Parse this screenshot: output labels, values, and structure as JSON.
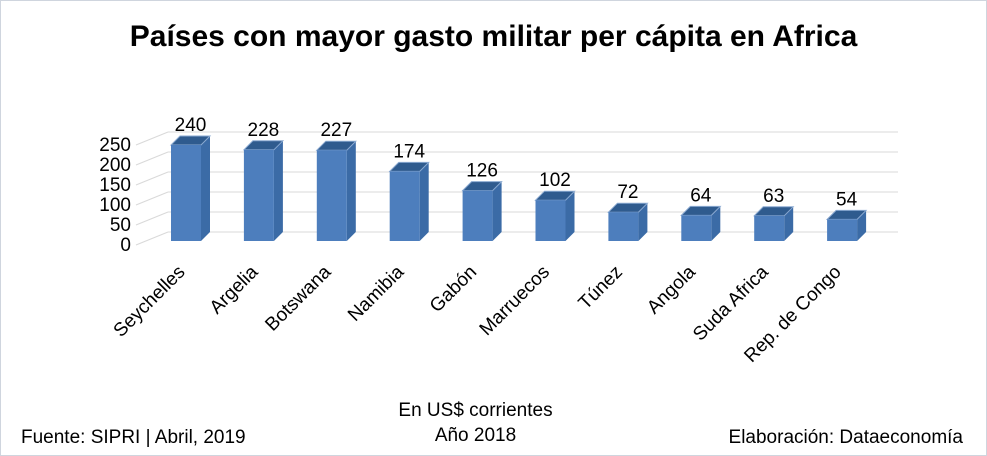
{
  "chart_data": {
    "type": "bar",
    "style": "3d-column",
    "title": "Países con mayor gasto militar per cápita en Africa",
    "categories": [
      "Seychelles",
      "Argelia",
      "Botswana",
      "Namibia",
      "Gabón",
      "Marruecos",
      "Túnez",
      "Angola",
      "Suda Africa",
      "Rep. de Congo"
    ],
    "values": [
      240,
      228,
      227,
      174,
      126,
      102,
      72,
      64,
      63,
      54
    ],
    "yticks": [
      0,
      50,
      100,
      150,
      200,
      250
    ],
    "ylim": [
      0,
      250
    ],
    "grid": true,
    "legend": false,
    "data_labels": true,
    "category_label_rotation_deg": -45,
    "colors": {
      "bar_front": "#4d7ebd",
      "bar_side": "#3b6ba6",
      "bar_top": "#2f5b8e",
      "bar_top_edge": "#8aa9d1",
      "gridline": "#d9d9d9",
      "text": "#000000",
      "background": "#ffffff"
    }
  },
  "footer": {
    "source": "Fuente: SIPRI | Abril, 2019",
    "note_line1": "En US$ corrientes",
    "note_line2": "Año 2018",
    "elaboration": "Elaboración: Dataeconomía"
  }
}
